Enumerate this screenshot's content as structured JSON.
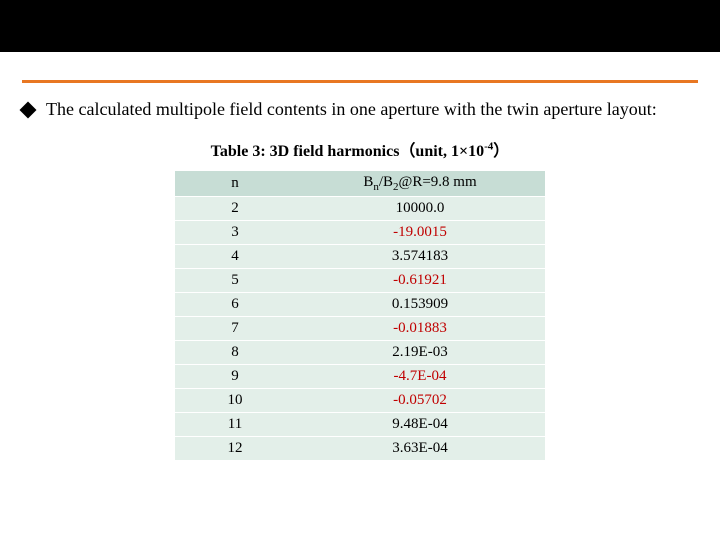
{
  "bullet_text": "The calculated multipole field contents in one aperture with the twin aperture layout:",
  "caption_prefix": "Table 3: 3D field harmonics（unit, 1×10",
  "caption_sup": "-4",
  "caption_suffix": "）",
  "table": {
    "header_n": "n",
    "header_v_html": "B<sub>n</sub>/B<sub>2</sub>@R=9.8 mm",
    "header_bg": "#c7ddd5",
    "row_bg": "#e3efe9",
    "neg_color": "#c00000",
    "rows": [
      {
        "n": "2",
        "v": "10000.0",
        "neg": false
      },
      {
        "n": "3",
        "v": "-19.0015",
        "neg": true
      },
      {
        "n": "4",
        "v": "3.574183",
        "neg": false
      },
      {
        "n": "5",
        "v": "-0.61921",
        "neg": true
      },
      {
        "n": "6",
        "v": "0.153909",
        "neg": false
      },
      {
        "n": "7",
        "v": "-0.01883",
        "neg": true
      },
      {
        "n": "8",
        "v": "2.19E-03",
        "neg": false
      },
      {
        "n": "9",
        "v": "-4.7E-04",
        "neg": true
      },
      {
        "n": "10",
        "v": "-0.05702",
        "neg": true
      },
      {
        "n": "11",
        "v": "9.48E-04",
        "neg": false
      },
      {
        "n": "12",
        "v": "3.63E-04",
        "neg": false
      }
    ]
  },
  "colors": {
    "orange": "#e87722",
    "black": "#000000"
  }
}
